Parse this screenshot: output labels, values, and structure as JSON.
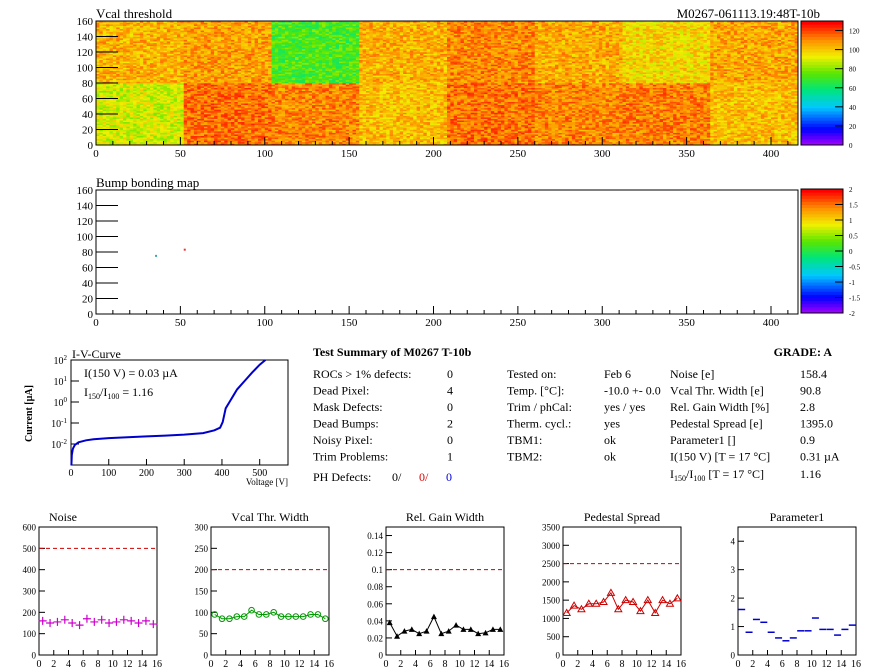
{
  "header": {
    "title": "Vcal threshold",
    "module_id": "M0267-061113.19:48T-10b"
  },
  "heatmaps": {
    "vcal": {
      "title": "Vcal threshold",
      "xlim": [
        0,
        416
      ],
      "ylim": [
        0,
        160
      ],
      "xticks": [
        "0",
        "50",
        "100",
        "150",
        "200",
        "250",
        "300",
        "350",
        "400"
      ],
      "yticks": [
        "0",
        "20",
        "40",
        "60",
        "80",
        "100",
        "120",
        "140",
        "160"
      ],
      "palette_ticks": [
        "0",
        "20",
        "40",
        "60",
        "80",
        "100",
        "120"
      ],
      "zlim": [
        0,
        130
      ],
      "rocs_top": [
        105,
        108,
        72,
        105,
        112,
        106,
        98,
        107
      ],
      "rocs_bottom": [
        90,
        115,
        112,
        103,
        115,
        112,
        113,
        103
      ]
    },
    "bump": {
      "title": "Bump bonding map",
      "xlim": [
        0,
        416
      ],
      "ylim": [
        0,
        160
      ],
      "xticks": [
        "0",
        "50",
        "100",
        "150",
        "200",
        "250",
        "300",
        "350",
        "400"
      ],
      "yticks": [
        "0",
        "20",
        "40",
        "60",
        "80",
        "100",
        "120",
        "140",
        "160"
      ],
      "palette_ticks": [
        "2",
        "1.5",
        "1",
        "0.5",
        "0",
        "-0.5",
        "-1",
        "-1.5",
        "-2"
      ],
      "zlim": [
        -2,
        2
      ],
      "points": [
        [
          35,
          75,
          "#33aaaa"
        ],
        [
          52,
          83,
          "#ee3333"
        ]
      ]
    }
  },
  "iv": {
    "title": "I-V-Curve",
    "ylabel": "Current [µA]",
    "xlabel": "Voltage [V]",
    "xticks": [
      "0",
      "100",
      "200",
      "300",
      "400",
      "500"
    ],
    "annot1": "I(150 V) = 0.03 µA",
    "annot2_a": "I",
    "annot2_sub1": "150",
    "annot2_b": "/I",
    "annot2_sub2": "100",
    "annot2_c": " =  1.16",
    "curve": [
      [
        1,
        0.001
      ],
      [
        2,
        0.003
      ],
      [
        5,
        0.006
      ],
      [
        10,
        0.009
      ],
      [
        20,
        0.012
      ],
      [
        40,
        0.015
      ],
      [
        60,
        0.017
      ],
      [
        100,
        0.019
      ],
      [
        150,
        0.021
      ],
      [
        200,
        0.023
      ],
      [
        250,
        0.025
      ],
      [
        300,
        0.028
      ],
      [
        350,
        0.033
      ],
      [
        380,
        0.045
      ],
      [
        395,
        0.06
      ],
      [
        402,
        0.11
      ],
      [
        410,
        0.5
      ],
      [
        420,
        1.0
      ],
      [
        430,
        2.0
      ],
      [
        440,
        4.0
      ],
      [
        460,
        10
      ],
      [
        480,
        25
      ],
      [
        500,
        60
      ],
      [
        515,
        100
      ]
    ]
  },
  "summary": {
    "title": "Test Summary of M0267     T-10b",
    "grade": "GRADE:  A",
    "left": [
      {
        "label": "ROCs > 1% defects:",
        "value": "0"
      },
      {
        "label": "Dead Pixel:",
        "value": "4"
      },
      {
        "label": "Mask Defects:",
        "value": "0"
      },
      {
        "label": "Dead Bumps:",
        "value": "2"
      },
      {
        "label": "Noisy Pixel:",
        "value": "0"
      },
      {
        "label": "Trim Problems:",
        "value": "1"
      }
    ],
    "ph_label": "PH Defects:",
    "ph_v1": "0/",
    "ph_v2": "0/",
    "ph_v3": "0",
    "middle": [
      {
        "label": "Tested on:",
        "value": "Feb 6"
      },
      {
        "label": "Temp. [°C]:",
        "value": "-10.0 +- 0.0"
      },
      {
        "label": "Trim / phCal:",
        "value": "yes / yes"
      },
      {
        "label": "Therm. cycl.:",
        "value": "yes"
      },
      {
        "label": "TBM1:",
        "value": "ok"
      },
      {
        "label": "TBM2:",
        "value": "ok"
      }
    ],
    "right": [
      {
        "label": "Noise [e]",
        "value": "158.4"
      },
      {
        "label": "Vcal Thr. Width [e]",
        "value": "90.8"
      },
      {
        "label": "Rel. Gain Width [%]",
        "value": "2.8"
      },
      {
        "label": "Pedestal Spread [e]",
        "value": "1395.0"
      },
      {
        "label": "Parameter1 []",
        "value": "0.9"
      },
      {
        "label": "I(150 V) [T = 17 °C]",
        "value": "0.31 µA"
      }
    ],
    "ratio_a": "I",
    "ratio_sub1": "150",
    "ratio_b": "/I",
    "ratio_sub2": "100",
    "ratio_c": "  [T = 17 °C]",
    "ratio_value": "1.16"
  },
  "chart_data": [
    {
      "type": "scatter",
      "title": "Noise",
      "x": [
        0,
        1,
        2,
        3,
        4,
        5,
        6,
        7,
        8,
        9,
        10,
        11,
        12,
        13,
        14,
        15
      ],
      "values": [
        160,
        150,
        155,
        165,
        150,
        140,
        170,
        155,
        165,
        150,
        155,
        165,
        160,
        150,
        160,
        145
      ],
      "ylim": [
        0,
        600
      ],
      "yticks": [
        "0",
        "100",
        "200",
        "300",
        "400",
        "500",
        "600"
      ],
      "limit": 500,
      "color": "#cc00cc",
      "marker": "plus"
    },
    {
      "type": "line",
      "title": "Vcal Thr. Width",
      "x": [
        0,
        1,
        2,
        3,
        4,
        5,
        6,
        7,
        8,
        9,
        10,
        11,
        12,
        13,
        14,
        15
      ],
      "values": [
        95,
        85,
        85,
        90,
        90,
        105,
        95,
        95,
        100,
        90,
        90,
        90,
        90,
        95,
        95,
        85
      ],
      "ylim": [
        0,
        300
      ],
      "yticks": [
        "0",
        "50",
        "100",
        "150",
        "200",
        "250",
        "300"
      ],
      "limit": 200,
      "color": "#009900",
      "marker": "circle"
    },
    {
      "type": "line",
      "title": "Rel. Gain Width",
      "x": [
        0,
        1,
        2,
        3,
        4,
        5,
        6,
        7,
        8,
        9,
        10,
        11,
        12,
        13,
        14,
        15
      ],
      "values": [
        0.038,
        0.022,
        0.028,
        0.03,
        0.025,
        0.028,
        0.045,
        0.025,
        0.028,
        0.035,
        0.03,
        0.03,
        0.025,
        0.026,
        0.03,
        0.03
      ],
      "ylim": [
        0,
        0.15
      ],
      "yticks": [
        "0",
        "0.02",
        "0.04",
        "0.06",
        "0.08",
        "0.1",
        "0.12",
        "0.14"
      ],
      "limit": 0.1,
      "color": "#000000",
      "marker": "triangle"
    },
    {
      "type": "line",
      "title": "Pedestal Spread",
      "x": [
        0,
        1,
        2,
        3,
        4,
        5,
        6,
        7,
        8,
        9,
        10,
        11,
        12,
        13,
        14,
        15
      ],
      "values": [
        1150,
        1350,
        1250,
        1400,
        1400,
        1450,
        1700,
        1250,
        1500,
        1450,
        1200,
        1500,
        1150,
        1500,
        1400,
        1550
      ],
      "ylim": [
        0,
        3500
      ],
      "yticks": [
        "0",
        "500",
        "1000",
        "1500",
        "2000",
        "2500",
        "3000",
        "3500"
      ],
      "limit": 2500,
      "color": "#cc0000",
      "marker": "triangle-open"
    },
    {
      "type": "scatter",
      "title": "Parameter1",
      "x": [
        0,
        1,
        2,
        3,
        4,
        5,
        6,
        7,
        8,
        9,
        10,
        11,
        12,
        13,
        14,
        15
      ],
      "values": [
        1.6,
        0.8,
        1.25,
        1.15,
        0.8,
        0.6,
        0.5,
        0.6,
        0.85,
        0.85,
        1.3,
        0.9,
        0.9,
        0.7,
        0.9,
        1.05
      ],
      "ylim": [
        0,
        4.5
      ],
      "yticks": [
        "0",
        "1",
        "2",
        "3",
        "4"
      ],
      "limit": null,
      "color": "#0000cc",
      "marker": "hbar"
    }
  ],
  "small_xticks": [
    "0",
    "2",
    "4",
    "6",
    "8",
    "10",
    "12",
    "14",
    "16"
  ]
}
